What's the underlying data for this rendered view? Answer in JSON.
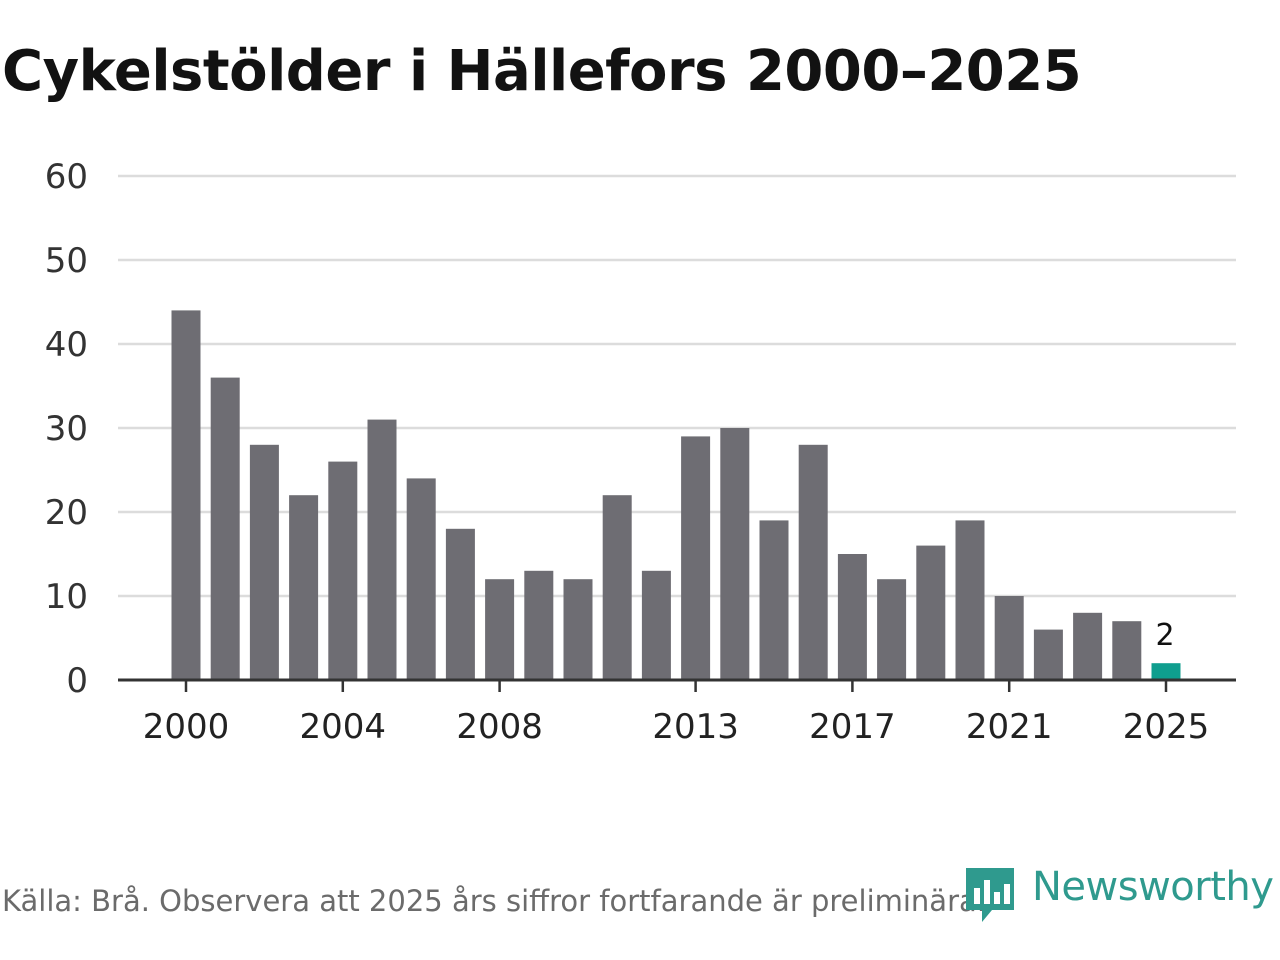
{
  "chart_data": {
    "type": "bar",
    "title": "Cykelstölder i Hällefors 2000–2025",
    "xlabel": "",
    "ylabel": "",
    "ylim": [
      0,
      60
    ],
    "yticks": [
      0,
      10,
      20,
      30,
      40,
      50,
      60
    ],
    "xtick_labels": [
      "2000",
      "2004",
      "2008",
      "2013",
      "2017",
      "2021",
      "2025"
    ],
    "categories": [
      "2000",
      "2001",
      "2002",
      "2003",
      "2004",
      "2005",
      "2006",
      "2007",
      "2008",
      "2009",
      "2010",
      "2011",
      "2012",
      "2013",
      "2014",
      "2015",
      "2016",
      "2017",
      "2018",
      "2019",
      "2020",
      "2021",
      "2022",
      "2023",
      "2024",
      "2025"
    ],
    "values": [
      44,
      36,
      28,
      22,
      26,
      31,
      24,
      18,
      12,
      13,
      12,
      22,
      13,
      29,
      30,
      19,
      28,
      15,
      12,
      16,
      19,
      10,
      6,
      8,
      7,
      2
    ],
    "highlight": {
      "category": "2025",
      "label": "2",
      "color": "#0f9e8e"
    },
    "bar_color": "#6e6d73",
    "grid": true
  },
  "footer": {
    "source": "Källa: Brå. Observera att 2025 års siffror fortfarande är preliminära."
  },
  "brand": {
    "name": "Newsworthy",
    "color": "#2f9a8e"
  }
}
